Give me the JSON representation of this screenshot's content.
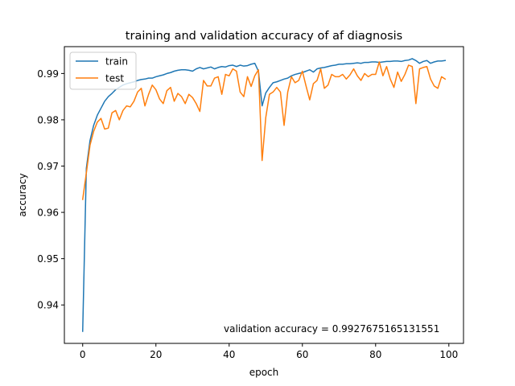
{
  "chart_data": {
    "type": "line",
    "title": "training and validation accuracy of af diagnosis",
    "xlabel": "epoch",
    "ylabel": "accuracy",
    "xlim": [
      -5,
      104
    ],
    "ylim": [
      0.9317,
      0.9958
    ],
    "xticks": [
      0,
      20,
      40,
      60,
      80,
      100
    ],
    "xtick_labels": [
      "0",
      "20",
      "40",
      "60",
      "80",
      "100"
    ],
    "yticks": [
      0.94,
      0.95,
      0.96,
      0.97,
      0.98,
      0.99
    ],
    "ytick_labels": [
      "0.94",
      "0.95",
      "0.96",
      "0.97",
      "0.98",
      "0.99"
    ],
    "grid": false,
    "legend_position": "top-left",
    "annotation": "validation accuracy = 0.9927675165131551",
    "series": [
      {
        "name": "train",
        "color": "#1f77b4",
        "x": [
          0,
          1,
          2,
          3,
          4,
          5,
          6,
          7,
          8,
          9,
          10,
          11,
          12,
          13,
          14,
          15,
          16,
          17,
          18,
          19,
          20,
          21,
          22,
          23,
          24,
          25,
          26,
          27,
          28,
          29,
          30,
          31,
          32,
          33,
          34,
          35,
          36,
          37,
          38,
          39,
          40,
          41,
          42,
          43,
          44,
          45,
          46,
          47,
          48,
          49,
          50,
          51,
          52,
          53,
          54,
          55,
          56,
          57,
          58,
          59,
          60,
          61,
          62,
          63,
          64,
          65,
          66,
          67,
          68,
          69,
          70,
          71,
          72,
          73,
          74,
          75,
          76,
          77,
          78,
          79,
          80,
          81,
          82,
          83,
          84,
          85,
          86,
          87,
          88,
          89,
          90,
          91,
          92,
          93,
          94,
          95,
          96,
          97,
          98,
          99
        ],
        "y": [
          0.9343,
          0.9695,
          0.9755,
          0.9788,
          0.981,
          0.9825,
          0.984,
          0.985,
          0.9857,
          0.9865,
          0.987,
          0.9875,
          0.9878,
          0.988,
          0.9882,
          0.9885,
          0.9887,
          0.9888,
          0.989,
          0.989,
          0.9893,
          0.9895,
          0.9897,
          0.99,
          0.9902,
          0.9905,
          0.9907,
          0.9908,
          0.9908,
          0.9907,
          0.9905,
          0.991,
          0.9913,
          0.991,
          0.9912,
          0.9914,
          0.991,
          0.9913,
          0.9915,
          0.9914,
          0.9917,
          0.9918,
          0.9915,
          0.9918,
          0.9916,
          0.9917,
          0.992,
          0.9922,
          0.9905,
          0.983,
          0.9858,
          0.987,
          0.988,
          0.9882,
          0.9885,
          0.9888,
          0.989,
          0.9895,
          0.9898,
          0.99,
          0.9902,
          0.9905,
          0.9908,
          0.9903,
          0.991,
          0.9912,
          0.9913,
          0.9915,
          0.9917,
          0.9918,
          0.992,
          0.992,
          0.9921,
          0.9921,
          0.9922,
          0.9923,
          0.9922,
          0.9924,
          0.9924,
          0.9925,
          0.9925,
          0.9924,
          0.9925,
          0.9926,
          0.9926,
          0.9927,
          0.9927,
          0.9926,
          0.9928,
          0.9929,
          0.9932,
          0.9928,
          0.9922,
          0.9926,
          0.9928,
          0.9922,
          0.9925,
          0.9927,
          0.9927,
          0.9928
        ]
      },
      {
        "name": "test",
        "color": "#ff7f0e",
        "x": [
          0,
          1,
          2,
          3,
          4,
          5,
          6,
          7,
          8,
          9,
          10,
          11,
          12,
          13,
          14,
          15,
          16,
          17,
          18,
          19,
          20,
          21,
          22,
          23,
          24,
          25,
          26,
          27,
          28,
          29,
          30,
          31,
          32,
          33,
          34,
          35,
          36,
          37,
          38,
          39,
          40,
          41,
          42,
          43,
          44,
          45,
          46,
          47,
          48,
          49,
          50,
          51,
          52,
          53,
          54,
          55,
          56,
          57,
          58,
          59,
          60,
          61,
          62,
          63,
          64,
          65,
          66,
          67,
          68,
          69,
          70,
          71,
          72,
          73,
          74,
          75,
          76,
          77,
          78,
          79,
          80,
          81,
          82,
          83,
          84,
          85,
          86,
          87,
          88,
          89,
          90,
          91,
          92,
          93,
          94,
          95,
          96,
          97,
          98,
          99
        ],
        "y": [
          0.9628,
          0.9685,
          0.9745,
          0.9775,
          0.9795,
          0.9803,
          0.978,
          0.9782,
          0.9815,
          0.982,
          0.98,
          0.982,
          0.983,
          0.9828,
          0.984,
          0.986,
          0.9868,
          0.983,
          0.9855,
          0.9875,
          0.9865,
          0.9845,
          0.9835,
          0.9863,
          0.987,
          0.984,
          0.9857,
          0.985,
          0.9835,
          0.9855,
          0.9848,
          0.9835,
          0.9818,
          0.9885,
          0.9873,
          0.9873,
          0.989,
          0.9893,
          0.9855,
          0.9898,
          0.9895,
          0.991,
          0.9905,
          0.986,
          0.985,
          0.9893,
          0.9872,
          0.9895,
          0.9908,
          0.9712,
          0.9805,
          0.9855,
          0.986,
          0.987,
          0.986,
          0.9788,
          0.986,
          0.9893,
          0.988,
          0.9885,
          0.9905,
          0.9873,
          0.9843,
          0.9878,
          0.9885,
          0.991,
          0.9868,
          0.9875,
          0.9898,
          0.9893,
          0.9893,
          0.9898,
          0.9888,
          0.9897,
          0.991,
          0.9895,
          0.9885,
          0.99,
          0.9893,
          0.9898,
          0.9898,
          0.9925,
          0.9895,
          0.9915,
          0.9888,
          0.987,
          0.9903,
          0.9883,
          0.9898,
          0.9918,
          0.9915,
          0.9835,
          0.991,
          0.9913,
          0.9915,
          0.9888,
          0.9873,
          0.9868,
          0.9893,
          0.9888
        ]
      }
    ]
  }
}
